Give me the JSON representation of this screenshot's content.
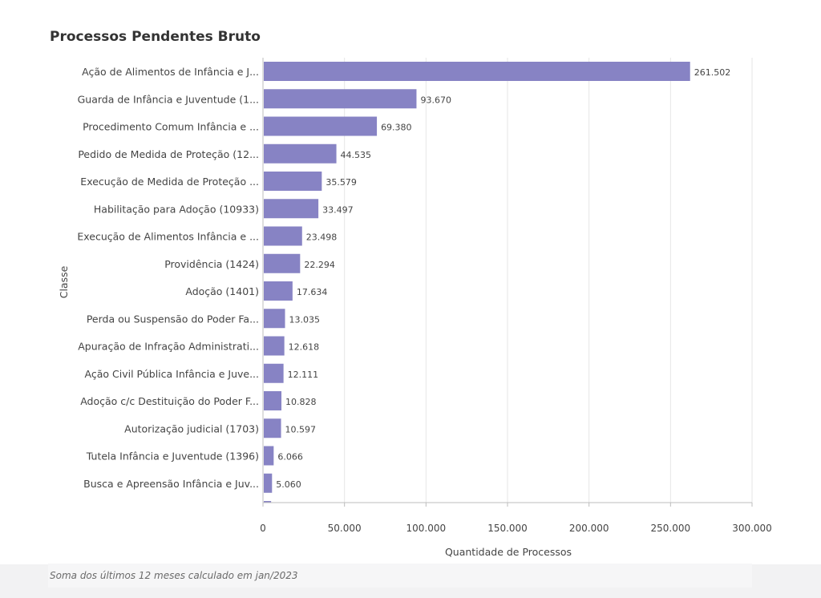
{
  "title": "Processos Pendentes Bruto",
  "footnote": "Soma dos últimos 12 meses calculado em jan/2023",
  "colors": {
    "bar": "#8783c4",
    "grid": "#e6e6e6",
    "text": "#444444"
  },
  "chart_data": {
    "type": "bar",
    "orientation": "horizontal",
    "title": "Processos Pendentes Bruto",
    "xlabel": "Quantidade de Processos",
    "ylabel": "Classe",
    "xlim": [
      0,
      300000
    ],
    "x_ticks": [
      0,
      50000,
      100000,
      150000,
      200000,
      250000,
      300000
    ],
    "x_tick_labels": [
      "0",
      "50.000",
      "100.000",
      "150.000",
      "200.000",
      "250.000",
      "300.000"
    ],
    "grid": "vertical",
    "categories": [
      "Ação de Alimentos de Infância e J...",
      "Guarda de Infância e Juventude (1...",
      "Procedimento Comum Infância e ...",
      "Pedido de Medida de Proteção (12...",
      "Execução de Medida de Proteção ...",
      "Habilitação para Adoção (10933)",
      "Execução de Alimentos Infância e ...",
      "Providência  (1424)",
      "Adoção (1401)",
      "Perda ou Suspensão do Poder Fa...",
      "Apuração de Infração Administrati...",
      "Ação Civil Pública Infância e Juve...",
      "Adoção c/c Destituição do Poder F...",
      "Autorização judicial (1703)",
      "Tutela Infância e Juventude (1396)",
      "Busca e Apreensão Infância e Juv..."
    ],
    "values": [
      261502,
      93670,
      69380,
      44535,
      35579,
      33497,
      23498,
      22294,
      17634,
      13035,
      12618,
      12111,
      10828,
      10597,
      6066,
      5060
    ],
    "value_labels": [
      "261.502",
      "93.670",
      "69.380",
      "44.535",
      "35.579",
      "33.497",
      "23.498",
      "22.294",
      "17.634",
      "13.035",
      "12.618",
      "12.111",
      "10.828",
      "10.597",
      "6.066",
      "5.060"
    ],
    "partial_next_bar_value": 4500
  }
}
